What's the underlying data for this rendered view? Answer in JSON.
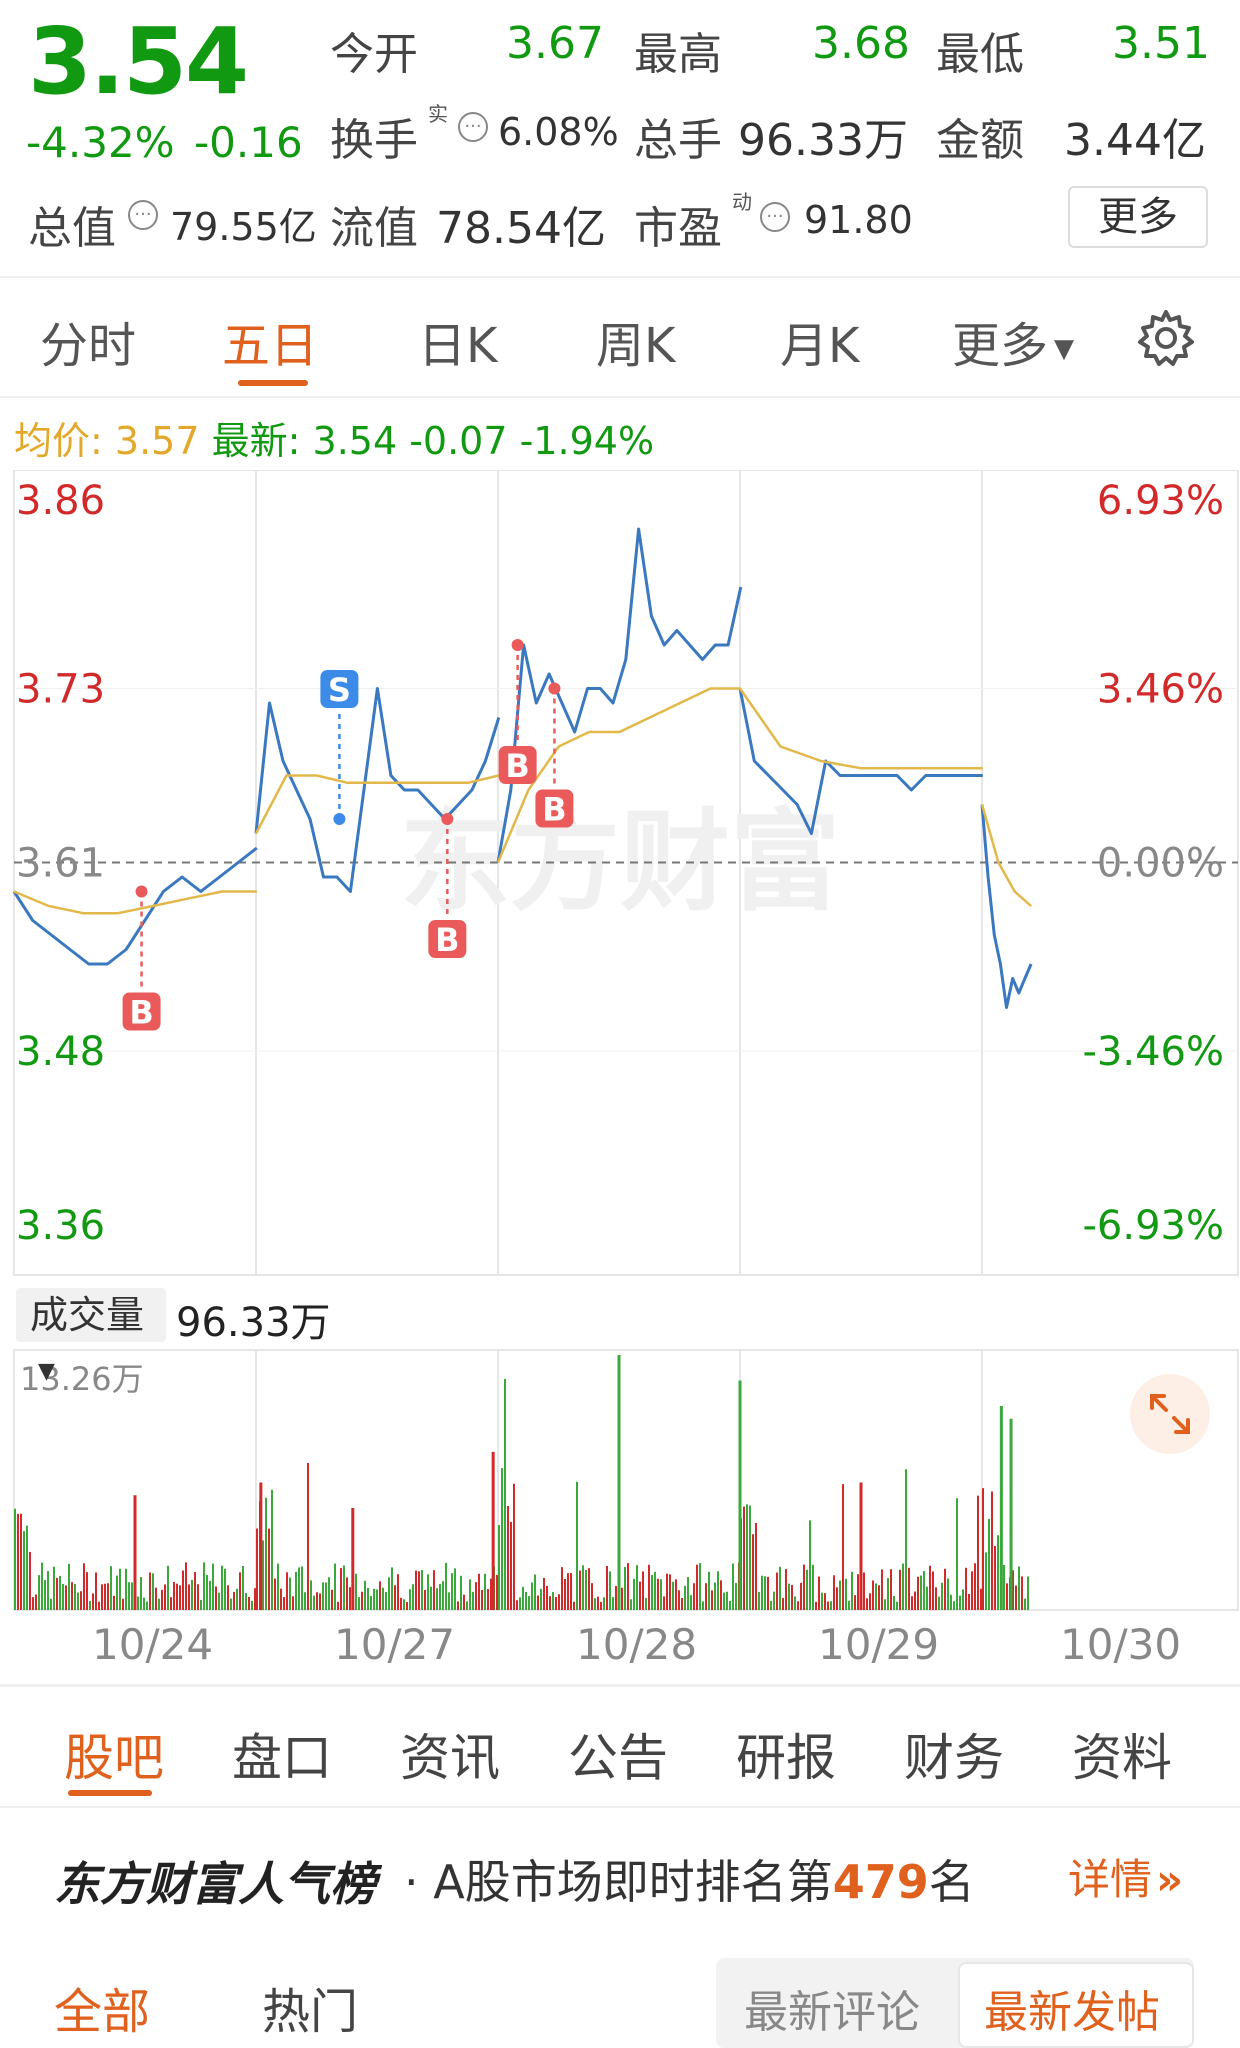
{
  "quote": {
    "price": "3.54",
    "change_pct": "-4.32%",
    "change_amt": "-0.16",
    "open_label": "今开",
    "open_value": "3.67",
    "high_label": "最高",
    "high_value": "3.68",
    "low_label": "最低",
    "low_value": "3.51",
    "turnover_label": "换手",
    "turnover_sup": "实",
    "turnover_value": "6.08%",
    "volume_label": "总手",
    "volume_value": "96.33万",
    "amount_label": "金额",
    "amount_value": "3.44亿",
    "mktcap_label": "总值",
    "mktcap_value": "79.55亿",
    "float_label": "流值",
    "float_value": "78.54亿",
    "pe_label": "市盈",
    "pe_sup": "动",
    "pe_value": "91.80",
    "more_label": "更多"
  },
  "chart_tabs": [
    "分时",
    "五日",
    "日K",
    "周K",
    "月K",
    "更多"
  ],
  "active_chart_tab": "五日",
  "info_line": {
    "avg_label": "均价:",
    "avg_value": "3.57",
    "latest_label": "最新:",
    "latest_value": "3.54",
    "latest_chg": "-0.07",
    "latest_pct": "-1.94%"
  },
  "watermark": "东方财富",
  "chart_data": {
    "type": "line",
    "title": "",
    "x": [
      "10/24",
      "10/27",
      "10/28",
      "10/29",
      "10/30"
    ],
    "ylim": [
      3.36,
      3.86
    ],
    "y_ticks_left": [
      "3.86",
      "3.73",
      "3.61",
      "3.48",
      "3.36"
    ],
    "y_ticks_right": [
      "6.93%",
      "3.46%",
      "0.00%",
      "-3.46%",
      "-6.93%"
    ],
    "series": [
      {
        "name": "price",
        "color": "#3a78c0",
        "days": [
          {
            "day": "10/24",
            "points": [
              3.59,
              3.57,
              3.56,
              3.55,
              3.54,
              3.54,
              3.55,
              3.57,
              3.59,
              3.6,
              3.59,
              3.6,
              3.61,
              3.62
            ]
          },
          {
            "day": "10/27",
            "points": [
              3.63,
              3.72,
              3.68,
              3.66,
              3.64,
              3.6,
              3.6,
              3.59,
              3.66,
              3.73,
              3.67,
              3.66,
              3.66,
              3.65,
              3.64,
              3.65,
              3.66,
              3.68,
              3.71
            ]
          },
          {
            "day": "10/28",
            "points": [
              3.61,
              3.66,
              3.76,
              3.72,
              3.74,
              3.72,
              3.7,
              3.73,
              3.73,
              3.72,
              3.75,
              3.84,
              3.78,
              3.76,
              3.77,
              3.76,
              3.75,
              3.76,
              3.76,
              3.8
            ]
          },
          {
            "day": "10/29",
            "points": [
              3.73,
              3.68,
              3.67,
              3.66,
              3.65,
              3.63,
              3.68,
              3.67,
              3.67,
              3.67,
              3.67,
              3.67,
              3.66,
              3.67,
              3.67,
              3.67,
              3.67,
              3.67
            ]
          },
          {
            "day": "10/30",
            "points": [
              3.65,
              3.6,
              3.56,
              3.54,
              3.51,
              3.53,
              3.52,
              3.53,
              3.54
            ]
          }
        ]
      },
      {
        "name": "avg",
        "color": "#e3b84a",
        "days": [
          {
            "day": "10/24",
            "points": [
              3.59,
              3.58,
              3.575,
              3.575,
              3.58,
              3.585,
              3.59,
              3.59
            ]
          },
          {
            "day": "10/27",
            "points": [
              3.63,
              3.67,
              3.67,
              3.665,
              3.665,
              3.665,
              3.665,
              3.665,
              3.67
            ]
          },
          {
            "day": "10/28",
            "points": [
              3.61,
              3.66,
              3.69,
              3.7,
              3.7,
              3.71,
              3.72,
              3.73,
              3.73
            ]
          },
          {
            "day": "10/29",
            "points": [
              3.73,
              3.69,
              3.68,
              3.675,
              3.675,
              3.675,
              3.675
            ]
          },
          {
            "day": "10/30",
            "points": [
              3.65,
              3.61,
              3.59,
              3.58
            ]
          }
        ]
      }
    ],
    "trade_marks": [
      {
        "label": "B",
        "type": "buy",
        "day": 0,
        "pos": 0.52,
        "price": 3.59
      },
      {
        "label": "S",
        "type": "sell",
        "day": 1,
        "pos": 0.34,
        "price": 3.64
      },
      {
        "label": "B",
        "type": "buy",
        "day": 1,
        "pos": 0.78,
        "price": 3.64
      },
      {
        "label": "B",
        "type": "buy",
        "day": 2,
        "pos": 0.08,
        "price": 3.76
      },
      {
        "label": "B",
        "type": "buy",
        "day": 2,
        "pos": 0.23,
        "price": 3.73
      }
    ],
    "baseline": 3.61
  },
  "volume": {
    "selector_label": "成交量",
    "value": "96.33万",
    "max_label": "13.26万"
  },
  "bottom_tabs": [
    "股吧",
    "盘口",
    "资讯",
    "公告",
    "研报",
    "财务",
    "资料"
  ],
  "active_bottom_tab": "股吧",
  "rank": {
    "logo": "东方财富人气榜",
    "text_before": "· A股市场即时排名第",
    "number": "479",
    "text_after": "名",
    "detail_label": "详情"
  },
  "filter_tabs": [
    "全部",
    "热门"
  ],
  "active_filter_tab": "全部",
  "sort_options": [
    "最新评论",
    "最新发帖"
  ],
  "active_sort": "最新发帖"
}
